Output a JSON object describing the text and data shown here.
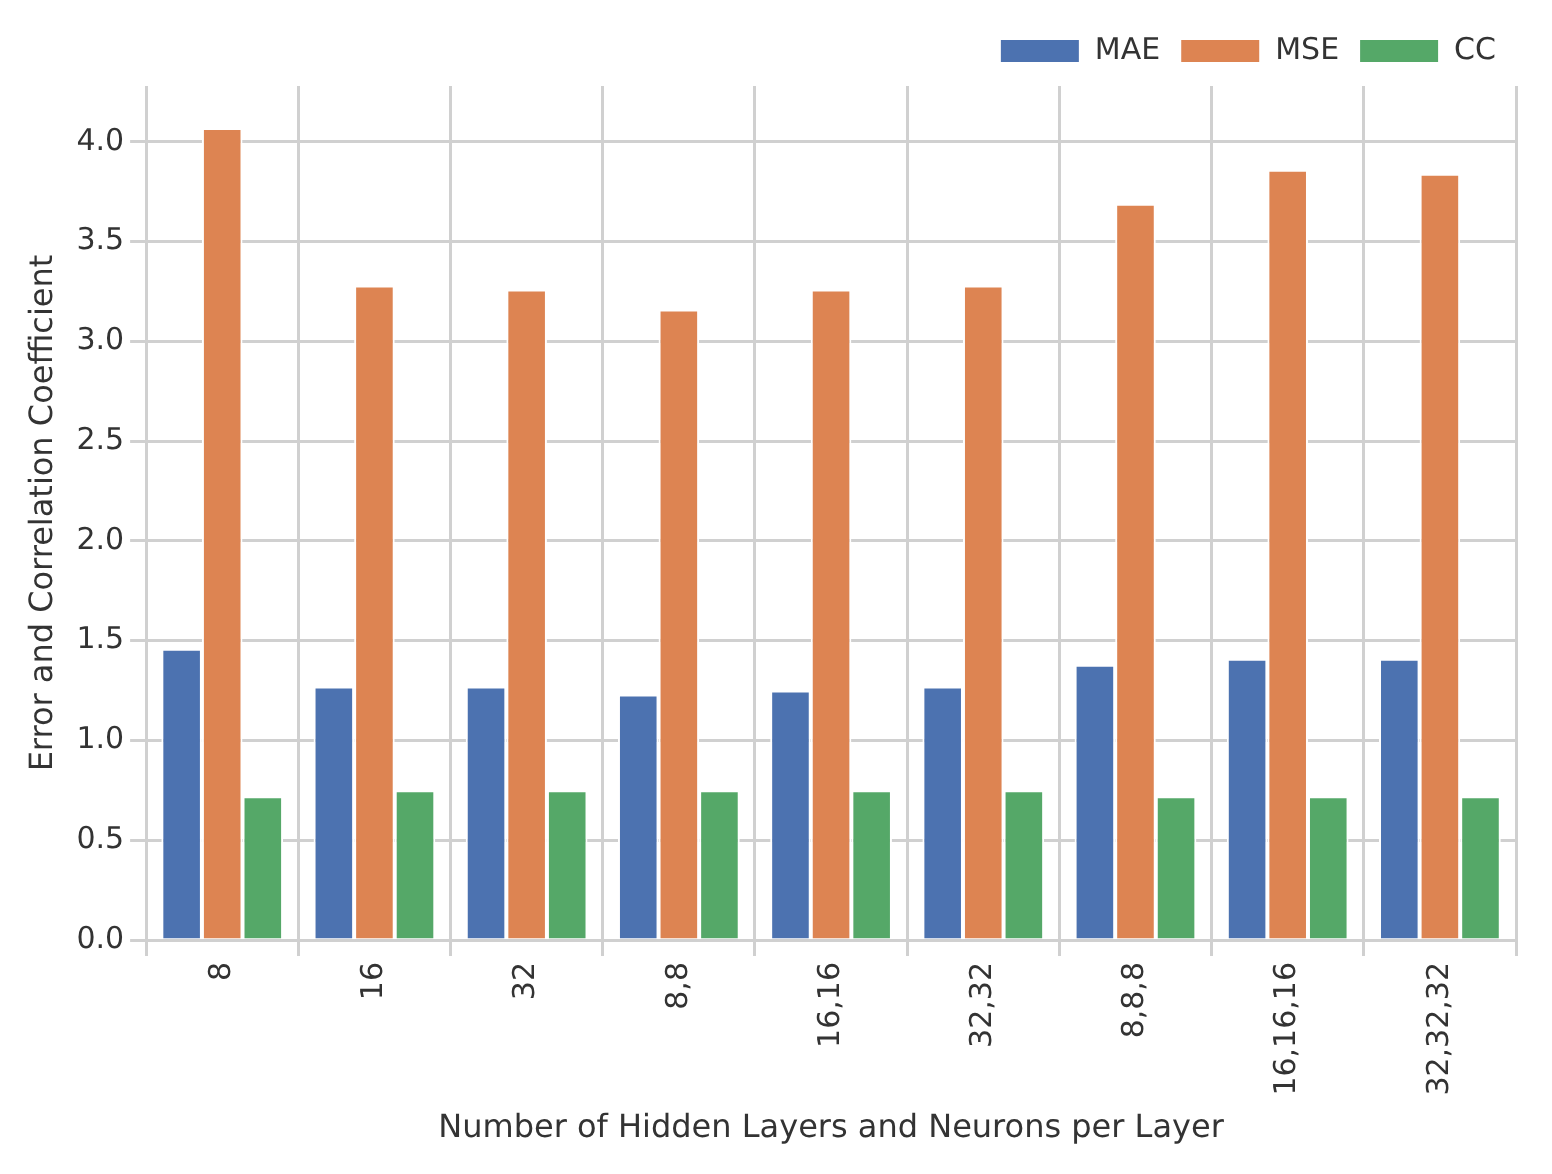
{
  "chart_data": {
    "type": "bar",
    "xlabel": "Number of Hidden Layers and Neurons per Layer",
    "ylabel": "Error and Correlation Coefficient",
    "categories": [
      "8",
      "16",
      "32",
      "8,8",
      "16,16",
      "32,32",
      "8,8,8",
      "16,16,16",
      "32,32,32"
    ],
    "series": [
      {
        "name": "MAE",
        "color": "#4c72b0",
        "values": [
          1.46,
          1.27,
          1.27,
          1.23,
          1.25,
          1.27,
          1.38,
          1.41,
          1.41
        ]
      },
      {
        "name": "MSE",
        "color": "#dd8452",
        "values": [
          4.07,
          3.28,
          3.26,
          3.16,
          3.26,
          3.28,
          3.69,
          3.86,
          3.84
        ]
      },
      {
        "name": "CC",
        "color": "#55a868",
        "values": [
          0.72,
          0.75,
          0.75,
          0.75,
          0.75,
          0.75,
          0.72,
          0.72,
          0.72
        ]
      }
    ],
    "ylim": [
      0,
      4.28
    ],
    "yticks": [
      {
        "value": 0,
        "label": "0.0"
      },
      {
        "value": 0.5,
        "label": "0.5"
      },
      {
        "value": 1,
        "label": "1.0"
      },
      {
        "value": 1.5,
        "label": "1.5"
      },
      {
        "value": 2,
        "label": "2.0"
      },
      {
        "value": 2.5,
        "label": "2.5"
      },
      {
        "value": 3,
        "label": "3.0"
      },
      {
        "value": 3.5,
        "label": "3.5"
      },
      {
        "value": 4,
        "label": "4.0"
      }
    ],
    "grid": true,
    "legend": "top right"
  }
}
